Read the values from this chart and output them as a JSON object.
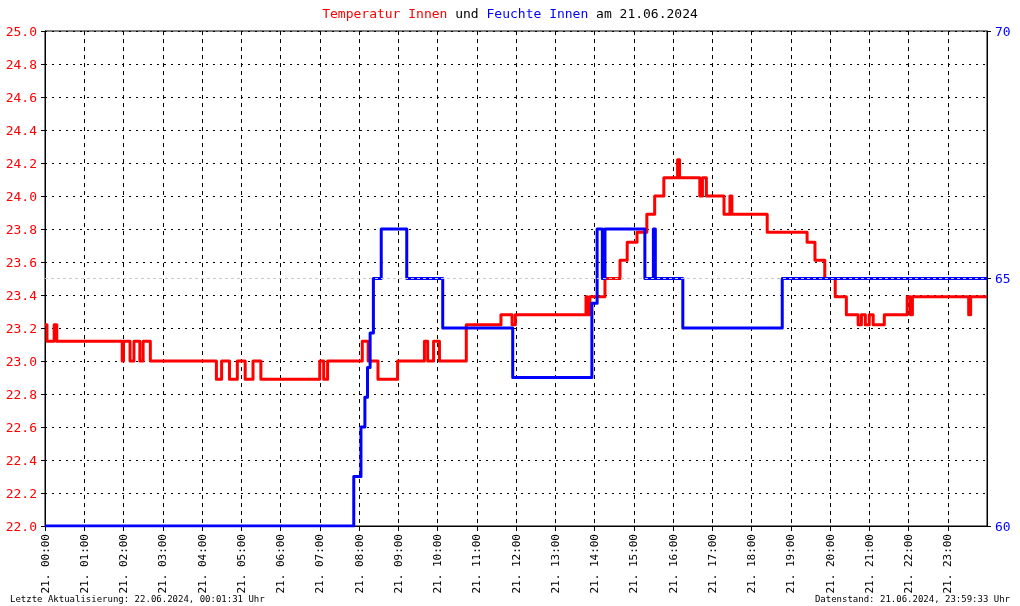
{
  "chart_data": {
    "type": "step",
    "title": "Temperatur Innen und Feuchte Innen am 21.06.2024",
    "xlim": [
      "2024-06-21T00:00",
      "2024-06-22T00:00"
    ],
    "xticks": [
      {
        "value": "2024-06-21T00:00",
        "label": "21. 00:00"
      },
      {
        "value": "2024-06-21T01:00",
        "label": "21. 01:00"
      },
      {
        "value": "2024-06-21T02:00",
        "label": "21. 02:00"
      },
      {
        "value": "2024-06-21T03:00",
        "label": "21. 03:00"
      },
      {
        "value": "2024-06-21T04:00",
        "label": "21. 04:00"
      },
      {
        "value": "2024-06-21T05:00",
        "label": "21. 05:00"
      },
      {
        "value": "2024-06-21T06:00",
        "label": "21. 06:00"
      },
      {
        "value": "2024-06-21T07:00",
        "label": "21. 07:00"
      },
      {
        "value": "2024-06-21T08:00",
        "label": "21. 08:00"
      },
      {
        "value": "2024-06-21T09:00",
        "label": "21. 09:00"
      },
      {
        "value": "2024-06-21T10:00",
        "label": "21. 10:00"
      },
      {
        "value": "2024-06-21T11:00",
        "label": "21. 11:00"
      },
      {
        "value": "2024-06-21T12:00",
        "label": "21. 12:00"
      },
      {
        "value": "2024-06-21T13:00",
        "label": "21. 13:00"
      },
      {
        "value": "2024-06-21T14:00",
        "label": "21. 14:00"
      },
      {
        "value": "2024-06-21T15:00",
        "label": "21. 15:00"
      },
      {
        "value": "2024-06-21T16:00",
        "label": "21. 16:00"
      },
      {
        "value": "2024-06-21T17:00",
        "label": "21. 17:00"
      },
      {
        "value": "2024-06-21T18:00",
        "label": "21. 18:00"
      },
      {
        "value": "2024-06-21T19:00",
        "label": "21. 19:00"
      },
      {
        "value": "2024-06-21T20:00",
        "label": "21. 20:00"
      },
      {
        "value": "2024-06-21T21:00",
        "label": "21. 21:00"
      },
      {
        "value": "2024-06-21T22:00",
        "label": "21. 22:00"
      },
      {
        "value": "2024-06-21T23:00",
        "label": "21. 23:00"
      }
    ],
    "ylim": [
      22.0,
      25.0
    ],
    "yticks": [
      {
        "value": 22,
        "label": "22.0"
      },
      {
        "value": 22.2,
        "label": "22.2"
      },
      {
        "value": 22.4,
        "label": "22.4"
      },
      {
        "value": 22.6,
        "label": "22.6"
      },
      {
        "value": 22.8,
        "label": "22.8"
      },
      {
        "value": 23,
        "label": "23.0"
      },
      {
        "value": 23.2,
        "label": "23.2"
      },
      {
        "value": 23.4,
        "label": "23.4"
      },
      {
        "value": 23.6,
        "label": "23.6"
      },
      {
        "value": 23.8,
        "label": "23.8"
      },
      {
        "value": 24,
        "label": "24.0"
      },
      {
        "value": 24.2,
        "label": "24.2"
      },
      {
        "value": 24.4,
        "label": "24.4"
      },
      {
        "value": 24.6,
        "label": "24.6"
      },
      {
        "value": 24.8,
        "label": "24.8"
      },
      {
        "value": 25,
        "label": "25.0"
      }
    ],
    "y2lim": [
      60,
      70
    ],
    "y2ticks": [
      60,
      65,
      70
    ],
    "grid": true,
    "ref_lines": [
      {
        "axis": "y2",
        "value": 65,
        "color": "#c8c8c8",
        "line_style": "dotted"
      }
    ],
    "series": [
      {
        "color": "#ff0000",
        "x": [
          "2024-06-21T00:00",
          "2024-06-21T00:03",
          "2024-06-21T00:14",
          "2024-06-21T00:18",
          "2024-06-21T01:58",
          "2024-06-21T02:00",
          "2024-06-21T02:10",
          "2024-06-21T02:16",
          "2024-06-21T02:25",
          "2024-06-21T02:30",
          "2024-06-21T02:41",
          "2024-06-21T02:44",
          "2024-06-21T04:22",
          "2024-06-21T04:30",
          "2024-06-21T04:42",
          "2024-06-21T04:54",
          "2024-06-21T05:06",
          "2024-06-21T05:18",
          "2024-06-21T05:30",
          "2024-06-21T05:47",
          "2024-06-21T07:00",
          "2024-06-21T07:06",
          "2024-06-21T07:12",
          "2024-06-21T07:18",
          "2024-06-21T08:05",
          "2024-06-21T08:14",
          "2024-06-21T08:29",
          "2024-06-21T08:59",
          "2024-06-21T09:40",
          "2024-06-21T09:45",
          "2024-06-21T09:54",
          "2024-06-21T10:03",
          "2024-06-21T10:44",
          "2024-06-21T11:37",
          "2024-06-21T11:54",
          "2024-06-21T11:59",
          "2024-06-21T13:47",
          "2024-06-21T13:49",
          "2024-06-21T13:53",
          "2024-06-21T14:16",
          "2024-06-21T14:39",
          "2024-06-21T14:50",
          "2024-06-21T15:05",
          "2024-06-21T15:20",
          "2024-06-21T15:32",
          "2024-06-21T15:46",
          "2024-06-21T16:07",
          "2024-06-21T16:10",
          "2024-06-21T16:41",
          "2024-06-21T16:45",
          "2024-06-21T16:51",
          "2024-06-21T16:54",
          "2024-06-21T17:18",
          "2024-06-21T17:27",
          "2024-06-21T17:30",
          "2024-06-21T18:24",
          "2024-06-21T19:25",
          "2024-06-21T19:37",
          "2024-06-21T19:52",
          "2024-06-21T20:08",
          "2024-06-21T20:25",
          "2024-06-21T20:43",
          "2024-06-21T20:48",
          "2024-06-21T20:54",
          "2024-06-21T21:00",
          "2024-06-21T21:06",
          "2024-06-21T21:23",
          "2024-06-21T21:58",
          "2024-06-21T22:03",
          "2024-06-21T22:06",
          "2024-06-21T23:32",
          "2024-06-21T23:35",
          "2024-06-22T00:00"
        ],
        "values": [
          23.22,
          23.12,
          23.22,
          23.12,
          23.0,
          23.12,
          23.0,
          23.12,
          23.0,
          23.12,
          23.0,
          23.0,
          22.89,
          23.0,
          22.89,
          23.0,
          22.89,
          23.0,
          22.89,
          22.89,
          23.0,
          22.89,
          23.0,
          23.0,
          23.12,
          23.0,
          22.89,
          23.0,
          23.12,
          23.0,
          23.12,
          23.0,
          23.22,
          23.28,
          23.22,
          23.28,
          23.39,
          23.28,
          23.39,
          23.5,
          23.61,
          23.72,
          23.78,
          23.89,
          24.0,
          24.11,
          24.22,
          24.11,
          24.0,
          24.11,
          24.0,
          24.0,
          23.89,
          24.0,
          23.89,
          23.78,
          23.72,
          23.61,
          23.5,
          23.39,
          23.28,
          23.22,
          23.28,
          23.22,
          23.28,
          23.22,
          23.28,
          23.39,
          23.28,
          23.39,
          23.28,
          23.39,
          23.39
        ]
      },
      {
        "color": "#0000ff",
        "axis": "y2",
        "x": [
          "2024-06-21T00:00",
          "2024-06-21T07:52",
          "2024-06-21T08:03",
          "2024-06-21T08:09",
          "2024-06-21T08:13",
          "2024-06-21T08:17",
          "2024-06-21T08:22",
          "2024-06-21T08:34",
          "2024-06-21T09:13",
          "2024-06-21T10:08",
          "2024-06-21T11:55",
          "2024-06-21T13:56",
          "2024-06-21T14:04",
          "2024-06-21T14:12",
          "2024-06-21T14:16",
          "2024-06-21T15:17",
          "2024-06-21T15:30",
          "2024-06-21T15:33",
          "2024-06-21T16:15",
          "2024-06-21T18:47",
          "2024-06-22T00:00"
        ],
        "values": [
          60,
          61,
          62,
          62.6,
          63.2,
          63.9,
          65,
          66,
          65,
          64,
          63,
          64.5,
          66,
          65,
          66,
          65,
          66,
          65,
          64,
          65,
          65
        ]
      }
    ],
    "annotations": [
      "Letzte Aktualisierung: 22.06.2024, 00:01:31 Uhr",
      "Datenstand: 21.06.2024, 23:59:33 Uhr"
    ]
  }
}
